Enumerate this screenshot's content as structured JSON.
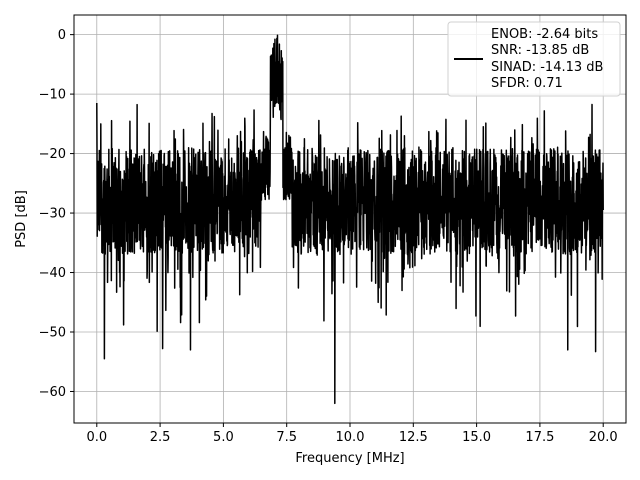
{
  "chart_data": {
    "type": "line",
    "xlabel": "Frequency [MHz]",
    "ylabel": "PSD [dB]",
    "xlim": [
      -0.9,
      20.9
    ],
    "ylim": [
      -65.3,
      3.3
    ],
    "xticks": [
      0.0,
      2.5,
      5.0,
      7.5,
      10.0,
      12.5,
      15.0,
      17.5,
      20.0
    ],
    "xtick_labels": [
      "0.0",
      "2.5",
      "5.0",
      "7.5",
      "10.0",
      "12.5",
      "15.0",
      "17.5",
      "20.0"
    ],
    "yticks": [
      0,
      -10,
      -20,
      -30,
      -40,
      -50,
      -60
    ],
    "ytick_labels": [
      "0",
      "−10",
      "−20",
      "−30",
      "−40",
      "−50",
      "−60"
    ],
    "grid": true,
    "legend_position": "top-right",
    "series": [
      {
        "color": "#000000",
        "noise_floor_db": -28,
        "peak_frequency_mhz": 7.1,
        "peak_db": -0.1,
        "spikes": [
          {
            "x": 0.0,
            "y": -11.5
          },
          {
            "x": 0.3,
            "y": -54.5
          },
          {
            "x": 3.7,
            "y": -53.0
          },
          {
            "x": 2.6,
            "y": -52.8
          },
          {
            "x": 9.4,
            "y": -62.0
          },
          {
            "x": 18.6,
            "y": -53.0
          },
          {
            "x": 19.7,
            "y": -53.3
          },
          {
            "x": 4.45,
            "y": -18.0
          },
          {
            "x": 5.55,
            "y": -17.0
          },
          {
            "x": 8.2,
            "y": -17.5
          },
          {
            "x": 12.15,
            "y": -17.0
          },
          {
            "x": 16.35,
            "y": -17.3
          }
        ]
      }
    ],
    "legend": {
      "lines": [
        "ENOB: -2.64 bits",
        "SNR: -13.85 dB",
        "SINAD: -14.13 dB",
        "SFDR: 0.71"
      ]
    }
  }
}
